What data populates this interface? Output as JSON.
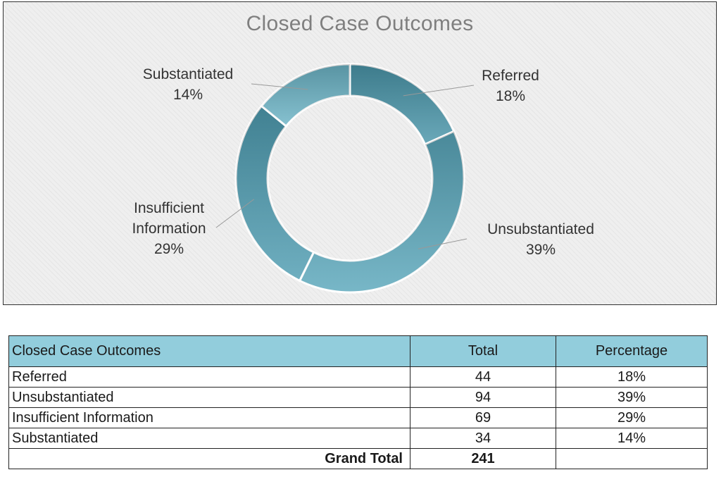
{
  "chart_data": {
    "type": "pie",
    "title": "Closed Case Outcomes",
    "donut": true,
    "slices": [
      {
        "label": "Referred",
        "value": 44,
        "percent": "18%",
        "color": "#4a96aa"
      },
      {
        "label": "Unsubstantiated",
        "value": 94,
        "percent": "39%",
        "color": "#5aa7bb"
      },
      {
        "label": "Insufficient Information",
        "value": 69,
        "percent": "29%",
        "color": "#4f9db2"
      },
      {
        "label": "Substantiated",
        "value": 34,
        "percent": "14%",
        "color": "#6cb4c6"
      }
    ],
    "legend": "none"
  },
  "table": {
    "headers": [
      "Closed Case Outcomes",
      "Total",
      "Percentage"
    ],
    "rows": [
      {
        "name": "Referred",
        "total": "44",
        "percent": "18%"
      },
      {
        "name": "Unsubstantiated",
        "total": "94",
        "percent": "39%"
      },
      {
        "name": "Insufficient Information",
        "total": "69",
        "percent": "29%"
      },
      {
        "name": "Substantiated",
        "total": "34",
        "percent": "14%"
      }
    ],
    "grand_total_label": "Grand Total",
    "grand_total_value": "241",
    "header_color": "#92cddc"
  }
}
